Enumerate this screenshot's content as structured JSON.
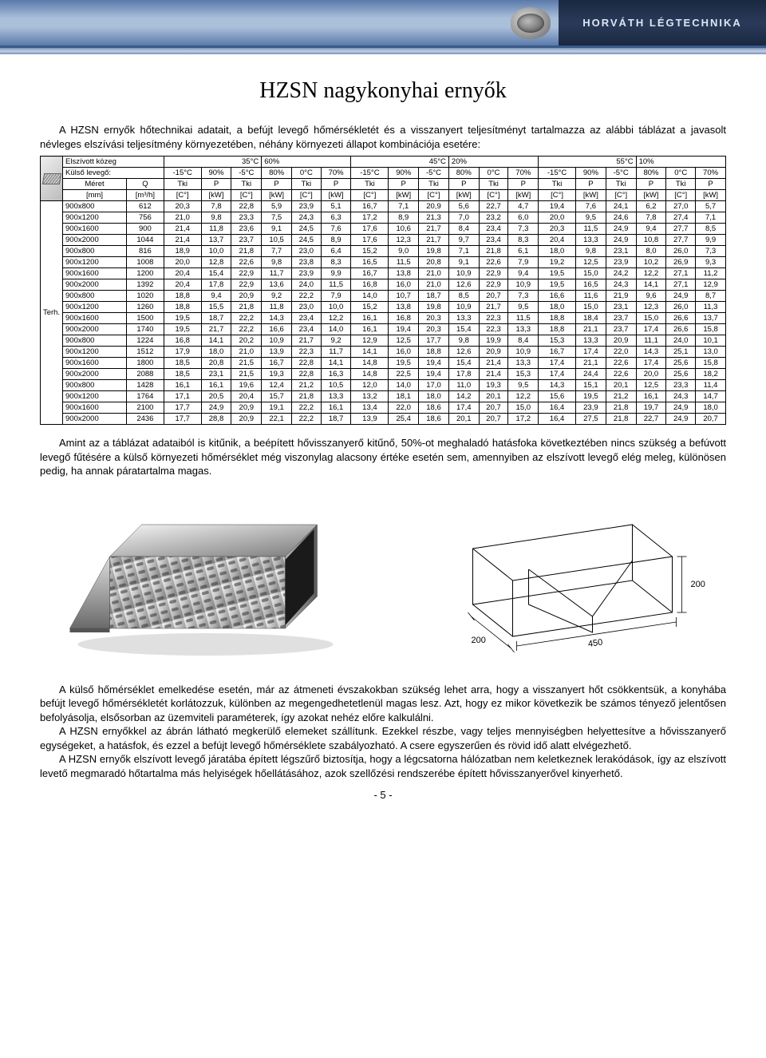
{
  "brand": "HORVÁTH LÉGTECHNIKA",
  "title": "HZSN nagykonyhai ernyők",
  "intro": "A HZSN ernyők hőtechnikai adatait, a befújt levegő hőmérsékletét és a visszanyert teljesítményt tartalmazza az alábbi táblázat a javasolt névleges elszívási teljesítmény környezetében, néhány környezeti állapot kombinációja esetére:",
  "table": {
    "row1": {
      "labelA": "Elszívott közeg",
      "g1": "35°C",
      "g1b": "60%",
      "g2": "45°C",
      "g2b": "20%",
      "g3": "55°C",
      "g3b": "10%"
    },
    "row2": {
      "labelA": "Külső levegő:",
      "c": [
        "-15°C",
        "90%",
        "-5°C",
        "80%",
        "0°C",
        "70%",
        "-15°C",
        "90%",
        "-5°C",
        "80%",
        "0°C",
        "70%",
        "-15°C",
        "90%",
        "-5°C",
        "80%",
        "0°C",
        "70%"
      ]
    },
    "row3": {
      "a": "Terh.",
      "b": "Méret",
      "c": "Q",
      "pairs": [
        "Tki",
        "P",
        "Tki",
        "P",
        "Tki",
        "P",
        "Tki",
        "P",
        "Tki",
        "P",
        "Tki",
        "P",
        "Tki",
        "P",
        "Tki",
        "P",
        "Tki",
        "P"
      ]
    },
    "row4": {
      "b": "[mm]",
      "c": "[m³/h]",
      "pairs": [
        "[C°]",
        "[kW]",
        "[C°]",
        "[kW]",
        "[C°]",
        "[kW]",
        "[C°]",
        "[kW]",
        "[C°]",
        "[kW]",
        "[C°]",
        "[kW]",
        "[C°]",
        "[kW]",
        "[C°]",
        "[kW]",
        "[C°]",
        "[kW]"
      ]
    },
    "rows": [
      [
        "900x800",
        "612",
        "20,3",
        "7,8",
        "22,8",
        "5,9",
        "23,9",
        "5,1",
        "16,7",
        "7,1",
        "20,9",
        "5,6",
        "22,7",
        "4,7",
        "19,4",
        "7,6",
        "24,1",
        "6,2",
        "27,0",
        "5,7"
      ],
      [
        "900x1200",
        "756",
        "21,0",
        "9,8",
        "23,3",
        "7,5",
        "24,3",
        "6,3",
        "17,2",
        "8,9",
        "21,3",
        "7,0",
        "23,2",
        "6,0",
        "20,0",
        "9,5",
        "24,6",
        "7,8",
        "27,4",
        "7,1"
      ],
      [
        "900x1600",
        "900",
        "21,4",
        "11,8",
        "23,6",
        "9,1",
        "24,5",
        "7,6",
        "17,6",
        "10,6",
        "21,7",
        "8,4",
        "23,4",
        "7,3",
        "20,3",
        "11,5",
        "24,9",
        "9,4",
        "27,7",
        "8,5"
      ],
      [
        "900x2000",
        "1044",
        "21,4",
        "13,7",
        "23,7",
        "10,5",
        "24,5",
        "8,9",
        "17,6",
        "12,3",
        "21,7",
        "9,7",
        "23,4",
        "8,3",
        "20,4",
        "13,3",
        "24,9",
        "10,8",
        "27,7",
        "9,9"
      ],
      [
        "900x800",
        "816",
        "18,9",
        "10,0",
        "21,8",
        "7,7",
        "23,0",
        "6,4",
        "15,2",
        "9,0",
        "19,8",
        "7,1",
        "21,8",
        "6,1",
        "18,0",
        "9,8",
        "23,1",
        "8,0",
        "26,0",
        "7,3"
      ],
      [
        "900x1200",
        "1008",
        "20,0",
        "12,8",
        "22,6",
        "9,8",
        "23,8",
        "8,3",
        "16,5",
        "11,5",
        "20,8",
        "9,1",
        "22,6",
        "7,9",
        "19,2",
        "12,5",
        "23,9",
        "10,2",
        "26,9",
        "9,3"
      ],
      [
        "900x1600",
        "1200",
        "20,4",
        "15,4",
        "22,9",
        "11,7",
        "23,9",
        "9,9",
        "16,7",
        "13,8",
        "21,0",
        "10,9",
        "22,9",
        "9,4",
        "19,5",
        "15,0",
        "24,2",
        "12,2",
        "27,1",
        "11,2"
      ],
      [
        "900x2000",
        "1392",
        "20,4",
        "17,8",
        "22,9",
        "13,6",
        "24,0",
        "11,5",
        "16,8",
        "16,0",
        "21,0",
        "12,6",
        "22,9",
        "10,9",
        "19,5",
        "16,5",
        "24,3",
        "14,1",
        "27,1",
        "12,9"
      ],
      [
        "900x800",
        "1020",
        "18,8",
        "9,4",
        "20,9",
        "9,2",
        "22,2",
        "7,9",
        "14,0",
        "10,7",
        "18,7",
        "8,5",
        "20,7",
        "7,3",
        "16,6",
        "11,6",
        "21,9",
        "9,6",
        "24,9",
        "8,7"
      ],
      [
        "900x1200",
        "1260",
        "18,8",
        "15,5",
        "21,8",
        "11,8",
        "23,0",
        "10,0",
        "15,2",
        "13,8",
        "19,8",
        "10,9",
        "21,7",
        "9,5",
        "18,0",
        "15,0",
        "23,1",
        "12,3",
        "26,0",
        "11,3"
      ],
      [
        "900x1600",
        "1500",
        "19,5",
        "18,7",
        "22,2",
        "14,3",
        "23,4",
        "12,2",
        "16,1",
        "16,8",
        "20,3",
        "13,3",
        "22,3",
        "11,5",
        "18,8",
        "18,4",
        "23,7",
        "15,0",
        "26,6",
        "13,7"
      ],
      [
        "900x2000",
        "1740",
        "19,5",
        "21,7",
        "22,2",
        "16,6",
        "23,4",
        "14,0",
        "16,1",
        "19,4",
        "20,3",
        "15,4",
        "22,3",
        "13,3",
        "18,8",
        "21,1",
        "23,7",
        "17,4",
        "26,6",
        "15,8"
      ],
      [
        "900x800",
        "1224",
        "16,8",
        "14,1",
        "20,2",
        "10,9",
        "21,7",
        "9,2",
        "12,9",
        "12,5",
        "17,7",
        "9,8",
        "19,9",
        "8,4",
        "15,3",
        "13,3",
        "20,9",
        "11,1",
        "24,0",
        "10,1"
      ],
      [
        "900x1200",
        "1512",
        "17,9",
        "18,0",
        "21,0",
        "13,9",
        "22,3",
        "11,7",
        "14,1",
        "16,0",
        "18,8",
        "12,6",
        "20,9",
        "10,9",
        "16,7",
        "17,4",
        "22,0",
        "14,3",
        "25,1",
        "13,0"
      ],
      [
        "900x1600",
        "1800",
        "18,5",
        "20,8",
        "21,5",
        "16,7",
        "22,8",
        "14,1",
        "14,8",
        "19,5",
        "19,4",
        "15,4",
        "21,4",
        "13,3",
        "17,4",
        "21,1",
        "22,6",
        "17,4",
        "25,6",
        "15,8"
      ],
      [
        "900x2000",
        "2088",
        "18,5",
        "23,1",
        "21,5",
        "19,3",
        "22,8",
        "16,3",
        "14,8",
        "22,5",
        "19,4",
        "17,8",
        "21,4",
        "15,3",
        "17,4",
        "24,4",
        "22,6",
        "20,0",
        "25,6",
        "18,2"
      ],
      [
        "900x800",
        "1428",
        "16,1",
        "16,1",
        "19,6",
        "12,4",
        "21,2",
        "10,5",
        "12,0",
        "14,0",
        "17,0",
        "11,0",
        "19,3",
        "9,5",
        "14,3",
        "15,1",
        "20,1",
        "12,5",
        "23,3",
        "11,4"
      ],
      [
        "900x1200",
        "1764",
        "17,1",
        "20,5",
        "20,4",
        "15,7",
        "21,8",
        "13,3",
        "13,2",
        "18,1",
        "18,0",
        "14,2",
        "20,1",
        "12,2",
        "15,6",
        "19,5",
        "21,2",
        "16,1",
        "24,3",
        "14,7"
      ],
      [
        "900x1600",
        "2100",
        "17,7",
        "24,9",
        "20,9",
        "19,1",
        "22,2",
        "16,1",
        "13,4",
        "22,0",
        "18,6",
        "17,4",
        "20,7",
        "15,0",
        "16,4",
        "23,9",
        "21,8",
        "19,7",
        "24,9",
        "18,0"
      ],
      [
        "900x2000",
        "2436",
        "17,7",
        "28,8",
        "20,9",
        "22,1",
        "22,2",
        "18,7",
        "13,9",
        "25,4",
        "18,6",
        "20,1",
        "20,7",
        "17,2",
        "16,4",
        "27,5",
        "21,8",
        "22,7",
        "24,9",
        "20,7"
      ]
    ]
  },
  "after_table": "Amint az a táblázat adataiból is kitűnik, a beépített hővisszanyerő kitűnő, 50%-ot meghaladó hatásfoka következtében nincs szükség a befúvott levegő fűtésére a külső környezeti hőmérséklet még viszonylag alacsony értéke esetén sem, amennyiben az elszívott levegő elég meleg, különösen pedig, ha annak páratartalma magas.",
  "dim_a": "200",
  "dim_b": "450",
  "dim_c": "200",
  "para1": "A külső hőmérséklet emelkedése esetén, már az átmeneti évszakokban szükség lehet arra, hogy a visszanyert hőt csökkentsük, a konyhába befújt levegő hőmérsékletét korlátozzuk, különben az megengedhetetlenül magas lesz. Azt, hogy ez mikor következik be számos tényező jelentősen befolyásolja, elsősorban az üzemviteli paraméterek, így azokat nehéz előre kalkulálni.",
  "para2": "A HZSN ernyőkkel az ábrán látható megkerülő elemeket szállítunk. Ezekkel részbe, vagy teljes mennyiségben helyettesítve a hővisszanyerő egységeket, a hatásfok, és ezzel a befújt levegő hőmérséklete szabályozható. A csere egyszerűen és rövid idő alatt elvégezhető.",
  "para3": "A HZSN ernyők elszívott levegő járatába épített légszűrő biztosítja, hogy a légcsatorna hálózatban nem keletkeznek lerakódások, így az elszívott levető megmaradó hőtartalma más helyiségek hőellátásához, azok szellőzési rendszerébe épített hővisszanyerővel kinyerhető.",
  "page_no": "- 5 -",
  "colors": {
    "header_dark": "#1a2840",
    "header_light": "#aabfda",
    "border": "#000000"
  }
}
